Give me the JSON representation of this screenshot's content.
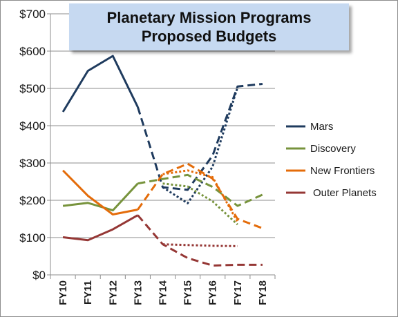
{
  "chart_data": {
    "type": "line",
    "title": "Planetary Mission Programs Proposed Budgets",
    "xlabel": "",
    "ylabel": "",
    "categories": [
      "FY10",
      "FY11",
      "FY12",
      "FY13",
      "FY14",
      "FY15",
      "FY16",
      "FY17",
      "FY18"
    ],
    "ylim": [
      0,
      700
    ],
    "yticks": [
      0,
      100,
      200,
      300,
      400,
      500,
      600,
      700
    ],
    "ytick_labels": [
      "$0",
      "$100",
      "$200",
      "$300",
      "$400",
      "$500",
      "$600",
      "$700"
    ],
    "grid": "horizontal",
    "legend_position": "right",
    "series": [
      {
        "name": "Mars",
        "color": "#1f3b5e",
        "segments": [
          {
            "style": "solid",
            "x": [
              "FY10",
              "FY11",
              "FY12",
              "FY13"
            ],
            "y": [
              437,
              547,
              587,
              450
            ]
          },
          {
            "style": "dashed",
            "x": [
              "FY13",
              "FY14",
              "FY15",
              "FY16",
              "FY17",
              "FY18"
            ],
            "y": [
              450,
              235,
              228,
              320,
              505,
              512
            ]
          },
          {
            "style": "dotted",
            "x": [
              "FY14",
              "FY15",
              "FY16",
              "FY17"
            ],
            "y": [
              235,
              192,
              290,
              503
            ]
          }
        ]
      },
      {
        "name": "Discovery",
        "color": "#77933c",
        "segments": [
          {
            "style": "solid",
            "x": [
              "FY10",
              "FY11",
              "FY12",
              "FY13"
            ],
            "y": [
              185,
              193,
              173,
              245
            ]
          },
          {
            "style": "dashed",
            "x": [
              "FY13",
              "FY14",
              "FY15",
              "FY16",
              "FY17",
              "FY18"
            ],
            "y": [
              245,
              257,
              268,
              236,
              185,
              215
            ]
          },
          {
            "style": "dotted",
            "x": [
              "FY14",
              "FY15",
              "FY16",
              "FY17"
            ],
            "y": [
              245,
              237,
              197,
              135
            ]
          }
        ]
      },
      {
        "name": "New Frontiers",
        "color": "#e46c0a",
        "segments": [
          {
            "style": "solid",
            "x": [
              "FY10",
              "FY11",
              "FY12",
              "FY13"
            ],
            "y": [
              280,
              212,
              162,
              175
            ]
          },
          {
            "style": "dashed",
            "x": [
              "FY13",
              "FY14",
              "FY15",
              "FY16",
              "FY17",
              "FY18"
            ],
            "y": [
              175,
              270,
              298,
              258,
              150,
              125
            ]
          },
          {
            "style": "dotted",
            "x": [
              "FY14",
              "FY15",
              "FY16",
              "FY17"
            ],
            "y": [
              270,
              280,
              262,
              142
            ]
          }
        ]
      },
      {
        "name": "Outer Planets",
        "color": "#953735",
        "segments": [
          {
            "style": "solid",
            "x": [
              "FY10",
              "FY11",
              "FY12",
              "FY13"
            ],
            "y": [
              101,
              93,
              122,
              160
            ]
          },
          {
            "style": "dashed",
            "x": [
              "FY13",
              "FY14",
              "FY15",
              "FY16",
              "FY17",
              "FY18"
            ],
            "y": [
              160,
              82,
              45,
              25,
              27,
              27
            ]
          },
          {
            "style": "dotted",
            "x": [
              "FY14",
              "FY15",
              "FY16",
              "FY17"
            ],
            "y": [
              82,
              80,
              78,
              77
            ]
          }
        ]
      }
    ]
  }
}
